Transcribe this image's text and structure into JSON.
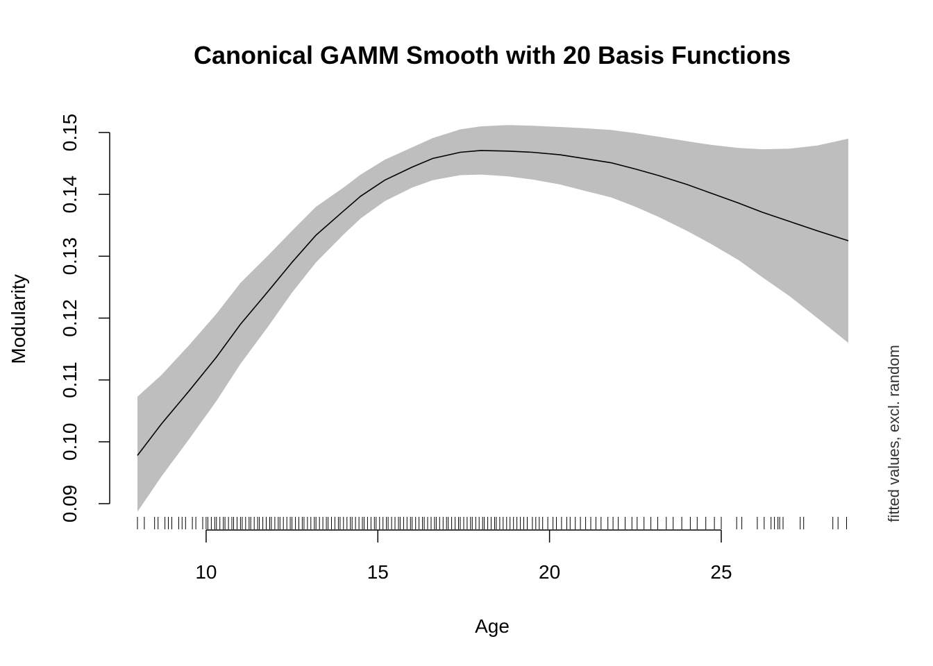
{
  "chart_data": {
    "type": "line",
    "title": "Canonical GAMM Smooth with 20 Basis Functions",
    "xlabel": "Age",
    "ylabel": "Modularity",
    "side_note": "fitted values, excl. random",
    "xlim": [
      8,
      28.7
    ],
    "ylim": [
      0.09,
      0.15
    ],
    "x_ticks": [
      10,
      15,
      20,
      25
    ],
    "x_tick_labels": [
      "10",
      "15",
      "20",
      "25"
    ],
    "y_ticks": [
      0.09,
      0.1,
      0.11,
      0.12,
      0.13,
      0.14,
      0.15
    ],
    "y_tick_labels": [
      "0.09",
      "0.10",
      "0.11",
      "0.12",
      "0.13",
      "0.14",
      "0.15"
    ],
    "grid": false,
    "legend": "none",
    "colors": {
      "line": "#000000",
      "band": "#bebebe"
    },
    "series": [
      {
        "x": [
          8.0,
          8.7,
          9.5,
          10.3,
          11.0,
          11.8,
          12.5,
          13.2,
          14.0,
          14.5,
          15.2,
          16.0,
          16.6,
          17.4,
          18.0,
          18.8,
          19.5,
          20.3,
          21.0,
          21.8,
          22.5,
          23.2,
          24.0,
          24.7,
          25.5,
          26.2,
          27.0,
          27.8,
          28.7
        ],
        "y": [
          0.0978,
          0.1029,
          0.1082,
          0.1137,
          0.119,
          0.1243,
          0.129,
          0.1334,
          0.1373,
          0.1397,
          0.1423,
          0.1444,
          0.1458,
          0.1468,
          0.1471,
          0.147,
          0.1468,
          0.1464,
          0.1458,
          0.1451,
          0.1441,
          0.143,
          0.1416,
          0.1402,
          0.1386,
          0.1371,
          0.1356,
          0.1341,
          0.1325
        ],
        "lower": [
          0.0887,
          0.0944,
          0.1004,
          0.1066,
          0.1126,
          0.1186,
          0.1241,
          0.129,
          0.1335,
          0.1361,
          0.1389,
          0.1411,
          0.1423,
          0.1431,
          0.1432,
          0.1429,
          0.1424,
          0.1416,
          0.1406,
          0.1395,
          0.138,
          0.1363,
          0.1341,
          0.132,
          0.1294,
          0.1266,
          0.1235,
          0.12,
          0.116
        ],
        "upper": [
          0.1073,
          0.1108,
          0.1156,
          0.1207,
          0.1257,
          0.1301,
          0.1341,
          0.138,
          0.1411,
          0.1432,
          0.1456,
          0.1476,
          0.1491,
          0.1505,
          0.151,
          0.1512,
          0.1511,
          0.1509,
          0.1507,
          0.1504,
          0.1499,
          0.1493,
          0.1486,
          0.148,
          0.1475,
          0.1473,
          0.1474,
          0.1479,
          0.149
        ]
      }
    ],
    "rug": [
      8.0,
      8.2,
      8.5,
      8.6,
      8.8,
      8.9,
      9.0,
      9.2,
      9.3,
      9.4,
      9.6,
      9.7,
      9.9,
      10.0,
      10.05,
      10.15,
      10.25,
      10.3,
      10.4,
      10.5,
      10.55,
      10.65,
      10.75,
      10.8,
      10.9,
      11.0,
      11.05,
      11.15,
      11.25,
      11.3,
      11.4,
      11.5,
      11.55,
      11.65,
      11.75,
      11.85,
      11.9,
      12.0,
      12.1,
      12.15,
      12.25,
      12.35,
      12.45,
      12.5,
      12.6,
      12.7,
      12.8,
      12.85,
      12.95,
      13.05,
      13.15,
      13.2,
      13.3,
      13.4,
      13.5,
      13.55,
      13.65,
      13.75,
      13.85,
      13.9,
      14.0,
      14.1,
      14.2,
      14.25,
      14.35,
      14.45,
      14.55,
      14.6,
      14.7,
      14.8,
      14.9,
      14.95,
      15.05,
      15.15,
      15.25,
      15.3,
      15.4,
      15.5,
      15.6,
      15.65,
      15.75,
      15.85,
      15.95,
      16.0,
      16.1,
      16.2,
      16.3,
      16.35,
      16.45,
      16.55,
      16.65,
      16.7,
      16.8,
      16.9,
      17.0,
      17.05,
      17.15,
      17.25,
      17.35,
      17.4,
      17.5,
      17.6,
      17.7,
      17.75,
      17.85,
      17.95,
      18.05,
      18.1,
      18.2,
      18.3,
      18.4,
      18.45,
      18.55,
      18.65,
      18.75,
      18.85,
      18.95,
      19.05,
      19.15,
      19.25,
      19.35,
      19.5,
      19.6,
      19.7,
      19.8,
      19.95,
      20.1,
      20.2,
      20.35,
      20.5,
      20.6,
      20.75,
      20.9,
      21.05,
      21.2,
      21.35,
      21.5,
      21.7,
      21.85,
      22.0,
      22.2,
      22.4,
      22.55,
      22.75,
      22.95,
      23.15,
      23.4,
      23.6,
      23.85,
      24.1,
      24.3,
      24.55,
      24.8,
      25.0,
      25.45,
      25.6,
      26.05,
      26.25,
      26.45,
      26.55,
      26.65,
      26.7,
      26.8,
      27.3,
      27.4,
      28.25,
      28.4,
      28.65
    ]
  }
}
